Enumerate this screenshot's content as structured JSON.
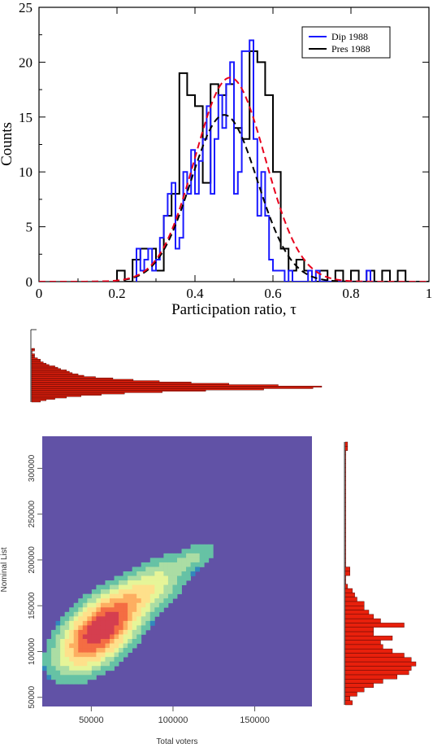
{
  "chart_data": [
    {
      "type": "line",
      "subtype": "step-histogram",
      "xlabel": "Participation ratio,  τ",
      "ylabel": "Counts",
      "xlim": [
        0,
        1
      ],
      "ylim": [
        0,
        25
      ],
      "x_ticks": [
        "0",
        "0.2",
        "0.4",
        "0.6",
        "0.8",
        "1"
      ],
      "y_ticks": [
        "0",
        "5",
        "10",
        "15",
        "20",
        "25"
      ],
      "legend_position": "top-right",
      "legend": [
        {
          "label": "Dip 1988",
          "color": "#1a1aff"
        },
        {
          "label": "Pres 1988",
          "color": "#000000"
        }
      ],
      "series": [
        {
          "name": "Dip 1988",
          "color": "#1a1aff",
          "style": "step",
          "x": [
            0.255,
            0.265,
            0.275,
            0.285,
            0.295,
            0.305,
            0.315,
            0.325,
            0.335,
            0.345,
            0.355,
            0.365,
            0.375,
            0.385,
            0.395,
            0.405,
            0.415,
            0.425,
            0.435,
            0.445,
            0.455,
            0.465,
            0.475,
            0.485,
            0.495,
            0.505,
            0.515,
            0.525,
            0.535,
            0.545,
            0.555,
            0.565,
            0.575,
            0.585,
            0.595,
            0.605,
            0.615,
            0.625,
            0.635,
            0.645,
            0.655,
            0.665,
            0.675,
            0.685,
            0.695,
            0.705,
            0.715,
            0.725,
            0.735,
            0.745,
            0.755,
            0.765,
            0.775,
            0.785,
            0.795,
            0.805,
            0.815,
            0.825,
            0.835,
            0.845,
            0.855
          ],
          "values": [
            3,
            1,
            2,
            3,
            1,
            2,
            4,
            6,
            8,
            9,
            3,
            4,
            10,
            8,
            12,
            8,
            11,
            13,
            16,
            8,
            13,
            17,
            14,
            18,
            20,
            8,
            10,
            21,
            21,
            22,
            13,
            6,
            10,
            6,
            2,
            1,
            1,
            1,
            0,
            1,
            0,
            0,
            0,
            0,
            1,
            0,
            1,
            0,
            0,
            0,
            0,
            0,
            0,
            0,
            0,
            0,
            0,
            0,
            0,
            1,
            0
          ]
        },
        {
          "name": "Pres 1988",
          "color": "#000000",
          "style": "step",
          "x": [
            0.21,
            0.23,
            0.25,
            0.27,
            0.29,
            0.31,
            0.33,
            0.35,
            0.37,
            0.39,
            0.41,
            0.43,
            0.45,
            0.47,
            0.49,
            0.51,
            0.53,
            0.55,
            0.57,
            0.59,
            0.61,
            0.63,
            0.65,
            0.67,
            0.69,
            0.71,
            0.73,
            0.75,
            0.77,
            0.79,
            0.81,
            0.83,
            0.85,
            0.87,
            0.89,
            0.91,
            0.93,
            0.95
          ],
          "values": [
            1,
            0,
            2,
            3,
            3,
            1,
            6,
            8,
            19,
            17,
            16,
            9,
            18,
            17,
            18,
            14,
            13,
            21,
            20,
            17,
            10,
            3,
            1,
            2,
            1,
            0,
            1,
            0,
            1,
            0,
            1,
            0,
            1,
            0,
            1,
            0,
            1,
            0
          ]
        },
        {
          "name": "",
          "color": "#e8001c",
          "style": "dashed",
          "fit": {
            "kind": "gaussian",
            "amplitude": 18.6,
            "mean": 0.49,
            "sd": 0.09
          }
        },
        {
          "name": "",
          "color": "#000000",
          "style": "dashed",
          "fit": {
            "kind": "gaussian",
            "amplitude": 15.2,
            "mean": 0.475,
            "sd": 0.085
          }
        }
      ]
    },
    {
      "type": "heatmap",
      "xlabel": "Total voters",
      "ylabel": "Nominal List",
      "x_ticks": [
        "50000",
        "100000",
        "150000"
      ],
      "y_ticks": [
        "50000",
        "100000",
        "150000",
        "200000",
        "250000",
        "300000"
      ],
      "xlim": [
        20000,
        185000
      ],
      "ylim": [
        40000,
        335000
      ],
      "background_color": "#6152a6",
      "color_scale": [
        "#6152a6",
        "#3288bd",
        "#66c2a5",
        "#abdda4",
        "#e6f598",
        "#fee08b",
        "#fdae61",
        "#f46d43",
        "#d53e4f"
      ],
      "components": [
        {
          "center_x": 55000,
          "center_y": 122000,
          "spread_x": 14000,
          "spread_y": 24000,
          "correlation": 0.55,
          "weight": 1.0
        },
        {
          "center_x": 82000,
          "center_y": 165000,
          "spread_x": 16000,
          "spread_y": 22000,
          "correlation": 0.7,
          "weight": 0.3
        },
        {
          "center_x": 115000,
          "center_y": 205000,
          "spread_x": 8000,
          "spread_y": 10000,
          "correlation": 0.6,
          "weight": 0.1
        }
      ]
    },
    {
      "type": "bar",
      "orientation": "horizontal",
      "axis": "Total voters",
      "bar_color": "#e8200c",
      "values": [
        1,
        1,
        0,
        0,
        1,
        1,
        1,
        2,
        3,
        3,
        4,
        5,
        6,
        8,
        9,
        10,
        12,
        13,
        14,
        16,
        18,
        22,
        28,
        35,
        44,
        55,
        68,
        85,
        100,
        97,
        80,
        60,
        45,
        32,
        24,
        17,
        12,
        8,
        5,
        3
      ]
    },
    {
      "type": "bar",
      "orientation": "horizontal",
      "axis": "Nominal List",
      "bar_color": "#e8200c",
      "values": [
        3,
        2,
        5,
        8,
        12,
        16,
        22,
        27,
        28,
        30,
        28,
        25,
        20,
        16,
        15,
        20,
        12,
        12,
        25,
        15,
        12,
        10,
        8,
        8,
        5,
        4,
        3,
        1,
        0,
        0,
        2,
        2,
        0,
        0,
        0,
        0,
        0,
        0,
        0,
        0,
        0,
        0,
        0,
        0,
        0,
        0,
        0,
        0,
        0,
        0,
        0,
        0,
        0,
        0,
        0,
        0,
        0,
        0,
        0,
        1,
        1
      ]
    }
  ]
}
